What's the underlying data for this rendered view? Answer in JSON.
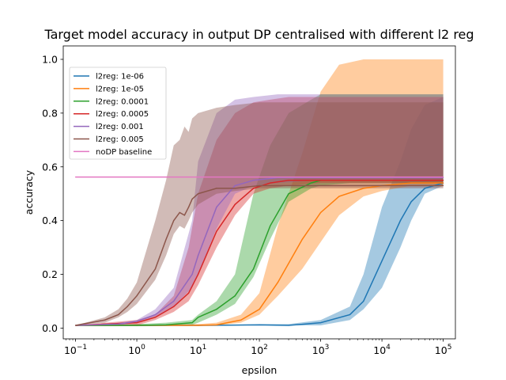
{
  "chart_data": {
    "type": "line",
    "title": "Target model accuracy in output DP centralised with different l2 reg",
    "xlabel": "epsilon",
    "ylabel": "accuracy",
    "xscale": "log",
    "xlim": [
      0.063,
      158000
    ],
    "ylim": [
      -0.04,
      1.05
    ],
    "x_tick_labels": [
      {
        "value": 0.1,
        "base": "10",
        "exp": "−1"
      },
      {
        "value": 1,
        "base": "10",
        "exp": "0"
      },
      {
        "value": 10,
        "base": "10",
        "exp": "1"
      },
      {
        "value": 100,
        "base": "10",
        "exp": "2"
      },
      {
        "value": 1000,
        "base": "10",
        "exp": "3"
      },
      {
        "value": 10000,
        "base": "10",
        "exp": "4"
      },
      {
        "value": 100000,
        "base": "10",
        "exp": "5"
      }
    ],
    "y_ticks": [
      0.0,
      0.2,
      0.4,
      0.6,
      0.8,
      1.0
    ],
    "y_tick_labels": [
      "0.0",
      "0.2",
      "0.4",
      "0.6",
      "0.8",
      "1.0"
    ],
    "legend_position": "upper-left",
    "series": [
      {
        "name": "l2reg: 1e-06",
        "color": "#1f77b4",
        "x": [
          0.1,
          1,
          10,
          100,
          300,
          1000,
          3000,
          5000,
          10000,
          20000,
          30000,
          50000,
          100000
        ],
        "y": [
          0.01,
          0.01,
          0.01,
          0.012,
          0.01,
          0.02,
          0.05,
          0.1,
          0.25,
          0.4,
          0.47,
          0.52,
          0.54
        ],
        "lower": [
          0.01,
          0.01,
          0.01,
          0.01,
          0.01,
          0.01,
          0.03,
          0.07,
          0.15,
          0.3,
          0.4,
          0.5,
          0.53
        ],
        "upper": [
          0.01,
          0.01,
          0.01,
          0.015,
          0.015,
          0.03,
          0.08,
          0.2,
          0.45,
          0.62,
          0.74,
          0.83,
          0.86
        ]
      },
      {
        "name": "l2reg: 1e-05",
        "color": "#ff7f0e",
        "x": [
          0.1,
          1,
          10,
          20,
          50,
          100,
          200,
          500,
          1000,
          2000,
          5000,
          10000,
          30000,
          100000
        ],
        "y": [
          0.01,
          0.01,
          0.01,
          0.012,
          0.03,
          0.07,
          0.17,
          0.33,
          0.43,
          0.49,
          0.52,
          0.53,
          0.54,
          0.54
        ],
        "lower": [
          0.01,
          0.01,
          0.01,
          0.01,
          0.02,
          0.05,
          0.12,
          0.22,
          0.32,
          0.42,
          0.49,
          0.51,
          0.53,
          0.53
        ],
        "upper": [
          0.01,
          0.01,
          0.015,
          0.02,
          0.05,
          0.13,
          0.38,
          0.65,
          0.88,
          0.98,
          1.0,
          1.0,
          1.0,
          1.0
        ]
      },
      {
        "name": "l2reg: 0.0001",
        "color": "#2ca02c",
        "x": [
          0.1,
          1,
          3,
          8,
          10,
          20,
          40,
          80,
          150,
          300,
          700,
          1000,
          3000,
          100000
        ],
        "y": [
          0.01,
          0.01,
          0.012,
          0.02,
          0.04,
          0.07,
          0.12,
          0.22,
          0.38,
          0.5,
          0.54,
          0.55,
          0.55,
          0.55
        ],
        "lower": [
          0.01,
          0.01,
          0.01,
          0.012,
          0.02,
          0.05,
          0.09,
          0.19,
          0.33,
          0.47,
          0.52,
          0.53,
          0.54,
          0.54
        ],
        "upper": [
          0.01,
          0.015,
          0.02,
          0.03,
          0.05,
          0.1,
          0.2,
          0.5,
          0.68,
          0.8,
          0.85,
          0.87,
          0.87,
          0.87
        ]
      },
      {
        "name": "l2reg: 0.0005",
        "color": "#d62728",
        "x": [
          0.1,
          1,
          2,
          4,
          7,
          10,
          20,
          40,
          80,
          150,
          300,
          1000,
          100000
        ],
        "y": [
          0.01,
          0.02,
          0.04,
          0.08,
          0.13,
          0.2,
          0.36,
          0.46,
          0.52,
          0.54,
          0.55,
          0.55,
          0.55
        ],
        "lower": [
          0.01,
          0.01,
          0.03,
          0.06,
          0.1,
          0.16,
          0.3,
          0.42,
          0.5,
          0.52,
          0.53,
          0.54,
          0.54
        ],
        "upper": [
          0.01,
          0.03,
          0.05,
          0.12,
          0.3,
          0.5,
          0.7,
          0.8,
          0.84,
          0.85,
          0.86,
          0.86,
          0.86
        ]
      },
      {
        "name": "l2reg: 0.001",
        "color": "#9467bd",
        "x": [
          0.1,
          0.5,
          1,
          2,
          4,
          8,
          10,
          20,
          40,
          80,
          200,
          1000,
          100000
        ],
        "y": [
          0.01,
          0.015,
          0.025,
          0.05,
          0.1,
          0.2,
          0.27,
          0.45,
          0.53,
          0.55,
          0.56,
          0.56,
          0.56
        ],
        "lower": [
          0.01,
          0.01,
          0.02,
          0.04,
          0.08,
          0.15,
          0.2,
          0.37,
          0.5,
          0.53,
          0.54,
          0.55,
          0.55
        ],
        "upper": [
          0.01,
          0.02,
          0.03,
          0.07,
          0.15,
          0.4,
          0.62,
          0.8,
          0.85,
          0.86,
          0.87,
          0.87,
          0.87
        ]
      },
      {
        "name": "l2reg: 0.005",
        "color": "#8c564b",
        "x": [
          0.1,
          0.3,
          0.5,
          0.7,
          1,
          2,
          3,
          4,
          5,
          6,
          7,
          8,
          10,
          20,
          40,
          100,
          100000
        ],
        "y": [
          0.01,
          0.03,
          0.05,
          0.08,
          0.12,
          0.22,
          0.33,
          0.4,
          0.43,
          0.42,
          0.45,
          0.48,
          0.5,
          0.52,
          0.52,
          0.53,
          0.53
        ],
        "lower": [
          0.01,
          0.02,
          0.04,
          0.06,
          0.09,
          0.18,
          0.27,
          0.35,
          0.38,
          0.37,
          0.4,
          0.43,
          0.46,
          0.5,
          0.51,
          0.52,
          0.52
        ],
        "upper": [
          0.01,
          0.04,
          0.07,
          0.11,
          0.17,
          0.4,
          0.55,
          0.68,
          0.7,
          0.75,
          0.73,
          0.78,
          0.8,
          0.82,
          0.83,
          0.84,
          0.84
        ]
      },
      {
        "name": "noDP baseline",
        "color": "#e377c2",
        "x": [
          0.1,
          100000
        ],
        "y": [
          0.562,
          0.562
        ]
      }
    ]
  }
}
